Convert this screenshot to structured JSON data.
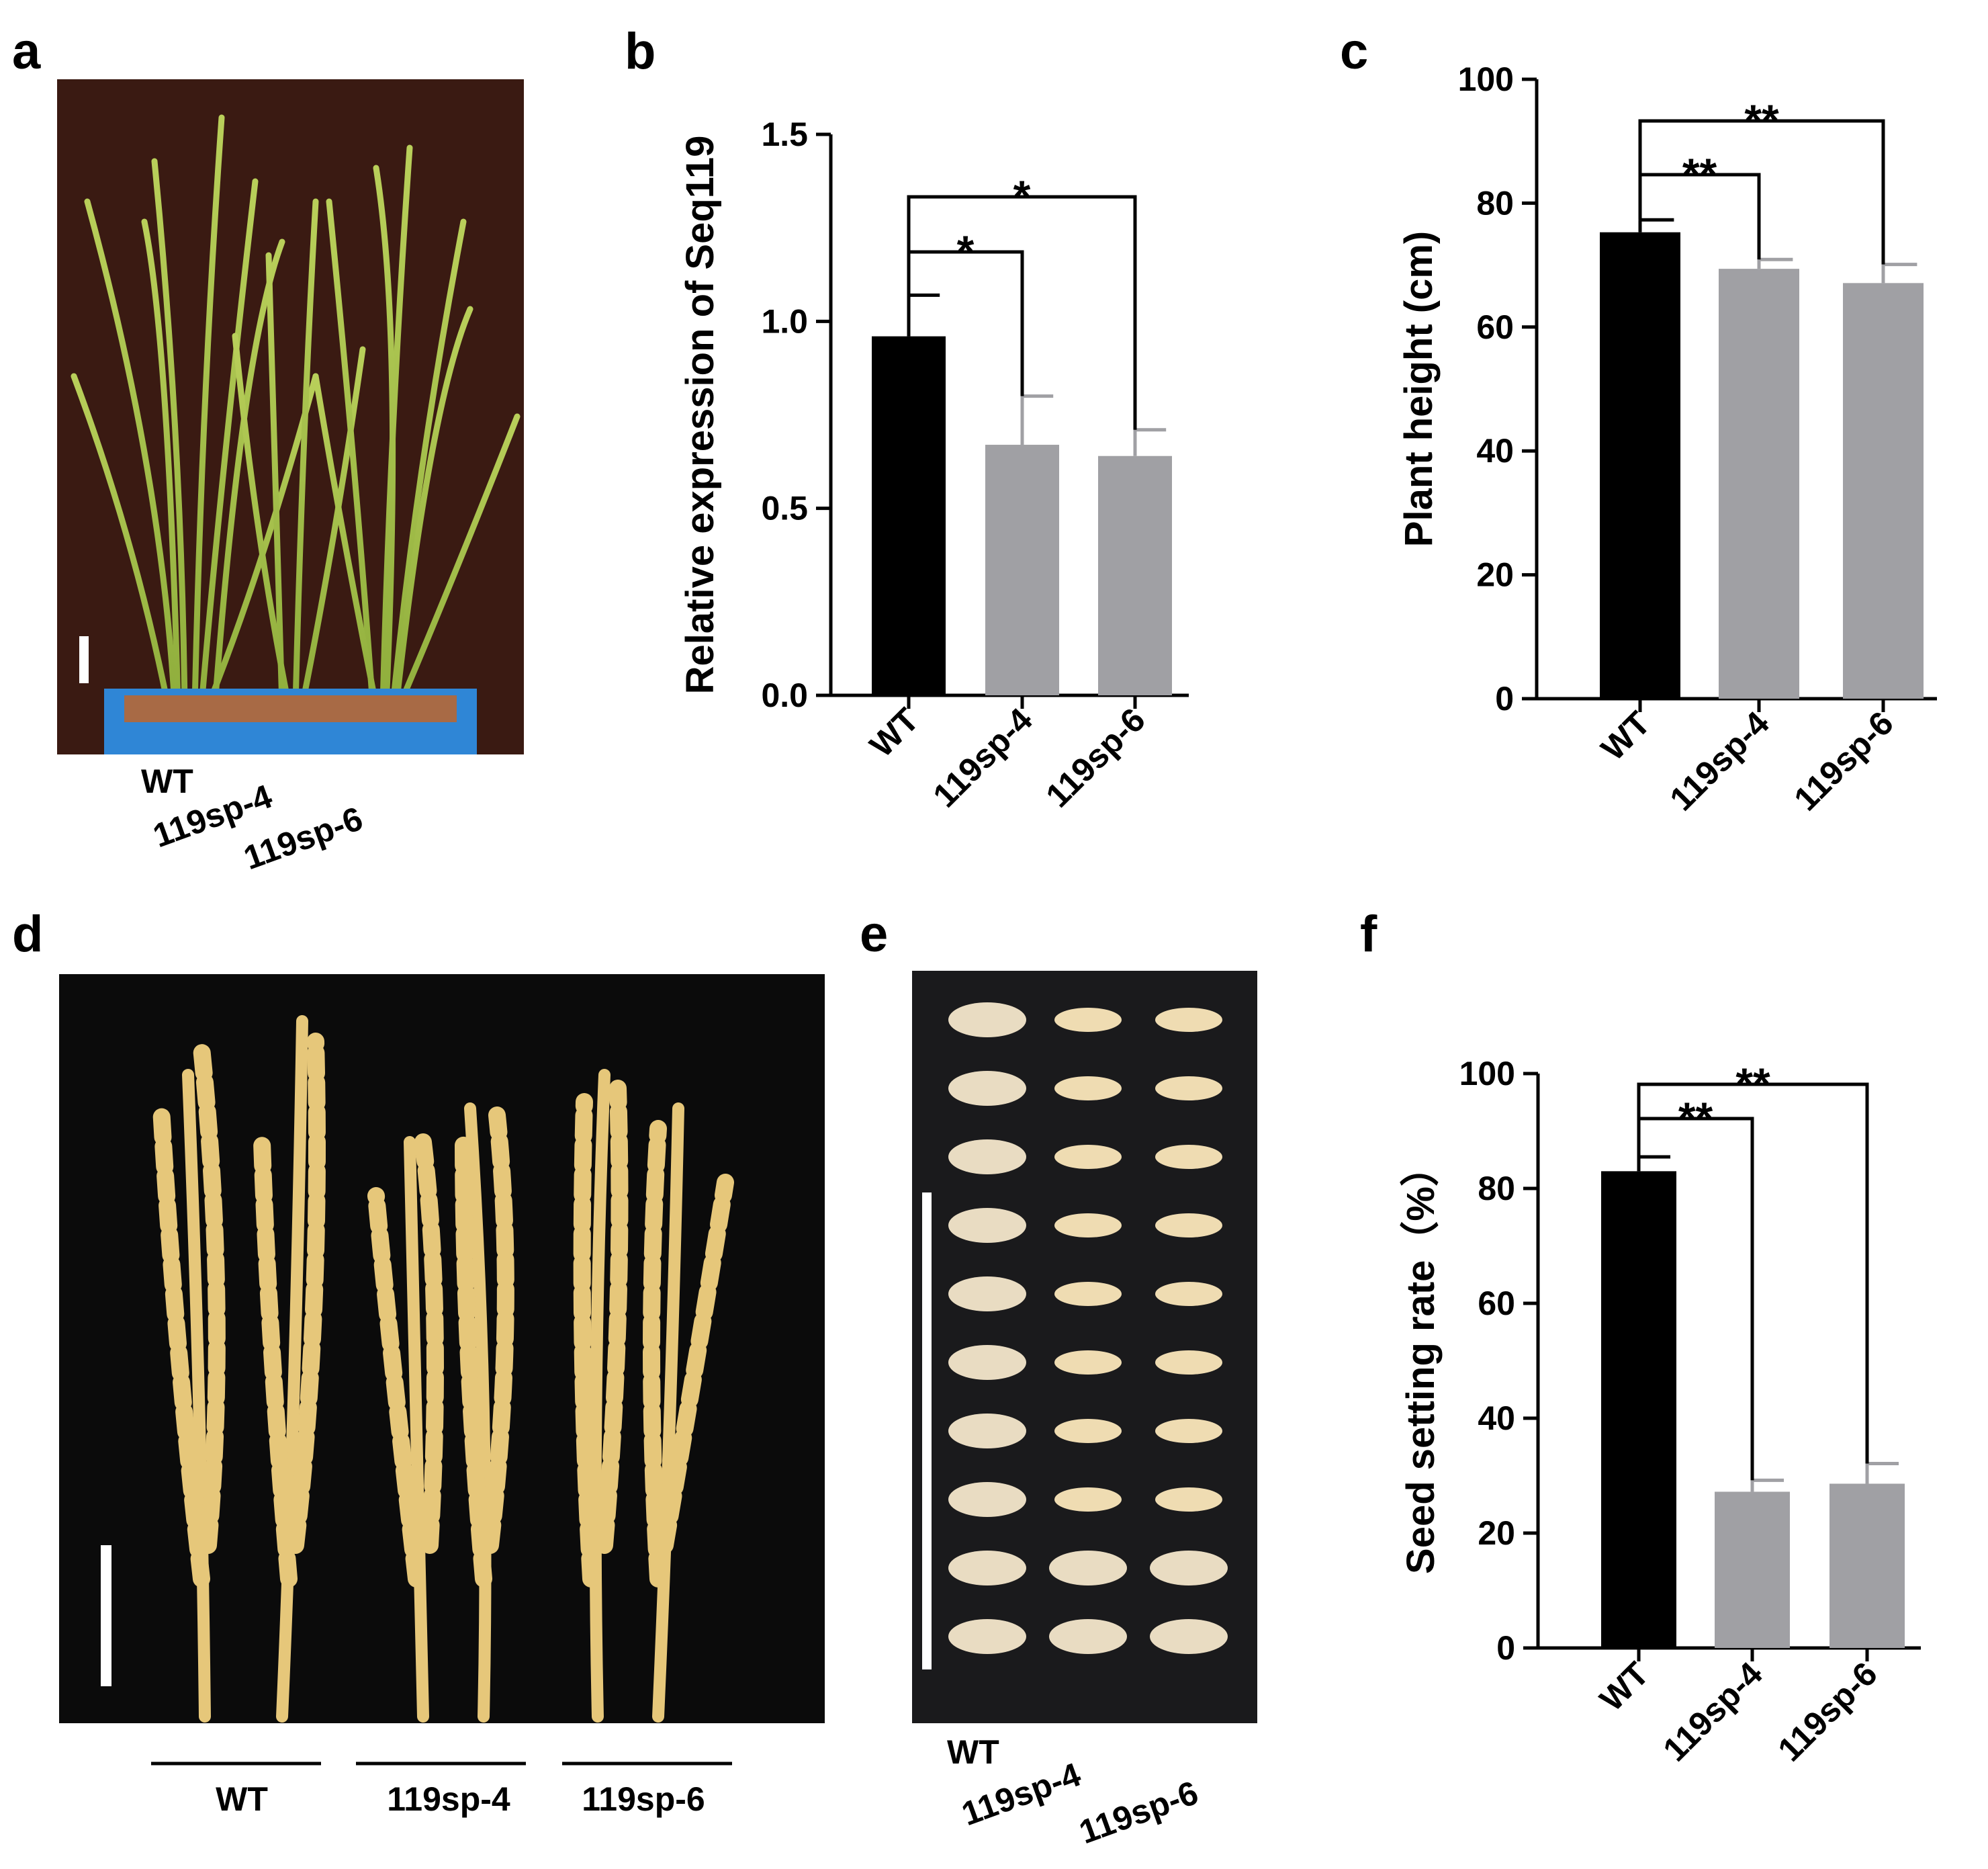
{
  "panels": {
    "a": {
      "letter": "a",
      "labels": [
        "WT",
        "119sp-4",
        "119sp-6"
      ]
    },
    "d": {
      "letter": "d",
      "labels": [
        "WT",
        "119sp-4",
        "119sp-6"
      ]
    },
    "e": {
      "letter": "e",
      "labels": [
        "WT",
        "119sp-4",
        "119sp-6"
      ]
    }
  },
  "colors": {
    "wt_bar": "#000000",
    "mutant_bar": "#a0a0a4",
    "photo_a_bg": "#3a1a12",
    "photo_d_bg": "#0b0b0b",
    "photo_e_bg": "#1a1a1c",
    "plant_green": "#a8c24a",
    "panicle_yellow": "#e6c77a",
    "seed_color": "#e9dcc2",
    "tray_blue": "#2f86d6"
  },
  "chart_data": [
    {
      "panel": "b",
      "letter": "b",
      "type": "bar",
      "categories": [
        "WT",
        "119sp-4",
        "119sp-6"
      ],
      "values": [
        0.96,
        0.67,
        0.64
      ],
      "errors": [
        0.11,
        0.13,
        0.07
      ],
      "ylabel": "Relative expression of Seq119",
      "ylim": [
        0,
        1.5
      ],
      "yticks": [
        "0.0",
        "0.5",
        "1.0",
        "1.5"
      ],
      "significance": [
        {
          "from": "WT",
          "to": "119sp-4",
          "label": "*"
        },
        {
          "from": "WT",
          "to": "119sp-6",
          "label": "*"
        }
      ]
    },
    {
      "panel": "c",
      "letter": "c",
      "type": "bar",
      "categories": [
        "WT",
        "119sp-4",
        "119sp-6"
      ],
      "values": [
        75.3,
        69.4,
        67.1
      ],
      "errors": [
        2.0,
        1.5,
        3.0
      ],
      "ylabel": "Plant height (cm)",
      "ylim": [
        0,
        100
      ],
      "yticks": [
        "0",
        "20",
        "40",
        "60",
        "80",
        "100"
      ],
      "significance": [
        {
          "from": "WT",
          "to": "119sp-4",
          "label": "**"
        },
        {
          "from": "WT",
          "to": "119sp-6",
          "label": "**"
        }
      ]
    },
    {
      "panel": "f",
      "letter": "f",
      "type": "bar",
      "categories": [
        "WT",
        "119sp-4",
        "119sp-6"
      ],
      "values": [
        83.0,
        27.2,
        28.6
      ],
      "errors": [
        2.5,
        2.0,
        3.5
      ],
      "ylabel": "Seed setting rate（%）",
      "ylim": [
        0,
        100
      ],
      "yticks": [
        "0",
        "20",
        "40",
        "60",
        "80",
        "100"
      ],
      "significance": [
        {
          "from": "WT",
          "to": "119sp-4",
          "label": "**"
        },
        {
          "from": "WT",
          "to": "119sp-6",
          "label": "**"
        }
      ]
    }
  ]
}
